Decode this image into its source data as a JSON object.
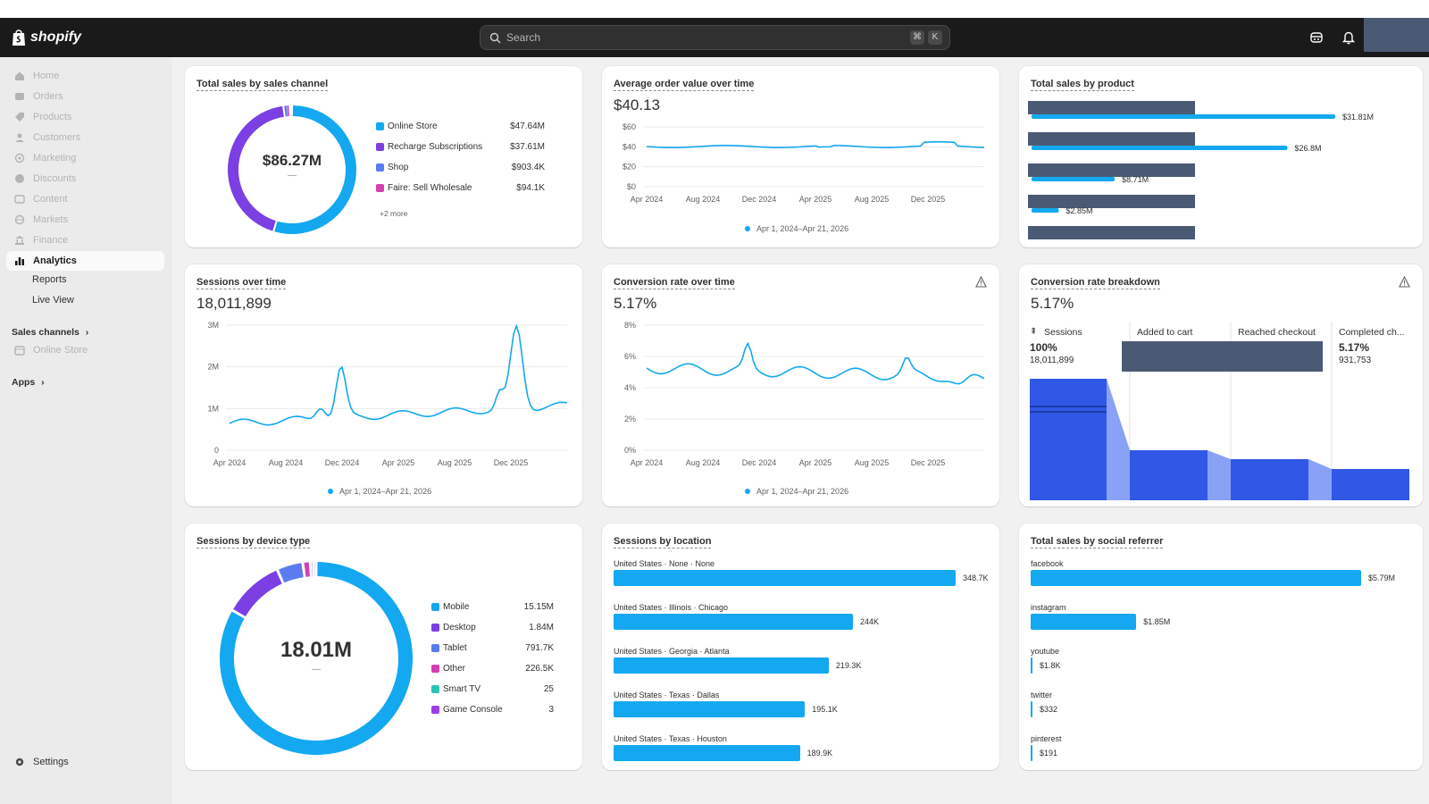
{
  "app": {
    "logo_text": "shopify",
    "search_placeholder": "Search",
    "search_shortcut": [
      "⌘",
      "K"
    ]
  },
  "sidebar": {
    "items": [
      {
        "label": "Home",
        "icon": "home-icon"
      },
      {
        "label": "Orders",
        "icon": "inbox-icon"
      },
      {
        "label": "Products",
        "icon": "tag-icon"
      },
      {
        "label": "Customers",
        "icon": "person-icon"
      },
      {
        "label": "Marketing",
        "icon": "target-icon"
      },
      {
        "label": "Discounts",
        "icon": "discount-icon"
      },
      {
        "label": "Content",
        "icon": "content-icon"
      },
      {
        "label": "Markets",
        "icon": "globe-icon"
      },
      {
        "label": "Finance",
        "icon": "bank-icon"
      },
      {
        "label": "Analytics",
        "icon": "chart-icon"
      }
    ],
    "analytics_sub": [
      "Reports",
      "Live View"
    ],
    "sales_channels_label": "Sales channels",
    "online_store_label": "Online Store",
    "apps_label": "Apps",
    "settings_label": "Settings"
  },
  "cards": {
    "sales_channel": {
      "title": "Total sales by sales channel",
      "center_value": "$86.27M",
      "center_sub": "—",
      "legend": [
        {
          "label": "Online Store",
          "value": "$47.64M",
          "color": "#13a8f0"
        },
        {
          "label": "Recharge Subscriptions",
          "value": "$37.61M",
          "color": "#7b3fe4"
        },
        {
          "label": "Shop",
          "value": "$903.4K",
          "color": "#5b7cf0"
        },
        {
          "label": "Faire: Sell Wholesale",
          "value": "$94.1K",
          "color": "#d43fb2"
        }
      ],
      "more": "+2 more"
    },
    "aov": {
      "title": "Average order value over time",
      "value": "$40.13",
      "y_ticks": [
        "$60",
        "$40",
        "$20",
        "$0"
      ],
      "x_ticks": [
        "Apr 2024",
        "Aug 2024",
        "Dec 2024",
        "Apr 2025",
        "Aug 2025",
        "Dec 2025"
      ],
      "legend": "Apr 1, 2024–Apr 21, 2026"
    },
    "sales_product": {
      "title": "Total sales by product",
      "values": [
        "$31.81M",
        "$26.8M",
        "$8.71M",
        "$2.85M"
      ],
      "amounts": [
        31.81,
        26.8,
        8.71,
        2.85
      ]
    },
    "sessions": {
      "title": "Sessions over time",
      "value": "18,011,899",
      "y_ticks": [
        "3M",
        "2M",
        "1M",
        "0"
      ],
      "x_ticks": [
        "Apr 2024",
        "Aug 2024",
        "Dec 2024",
        "Apr 2025",
        "Aug 2025",
        "Dec 2025"
      ],
      "legend": "Apr 1, 2024–Apr 21, 2026"
    },
    "conversion_time": {
      "title": "Conversion rate over time",
      "value": "5.17%",
      "y_ticks": [
        "8%",
        "6%",
        "4%",
        "2%",
        "0%"
      ],
      "x_ticks": [
        "Apr 2024",
        "Aug 2024",
        "Dec 2024",
        "Apr 2025",
        "Aug 2025",
        "Dec 2025"
      ],
      "legend": "Apr 1, 2024–Apr 21, 2026"
    },
    "conversion_breakdown": {
      "title": "Conversion rate breakdown",
      "value": "5.17%",
      "stages": [
        {
          "label": "Sessions",
          "pct": "100%",
          "count": "18,011,899"
        },
        {
          "label": "Added to cart",
          "pct": "",
          "count": ""
        },
        {
          "label": "Reached checkout",
          "pct": "",
          "count": ""
        },
        {
          "label": "Completed ch...",
          "pct": "5.17%",
          "count": "931,753"
        }
      ]
    },
    "device": {
      "title": "Sessions by device type",
      "center_value": "18.01M",
      "center_sub": "—",
      "legend": [
        {
          "label": "Mobile",
          "value": "15.15M",
          "color": "#13a8f0"
        },
        {
          "label": "Desktop",
          "value": "1.84M",
          "color": "#7b3fe4"
        },
        {
          "label": "Tablet",
          "value": "791.7K",
          "color": "#5b7cf0"
        },
        {
          "label": "Other",
          "value": "226.5K",
          "color": "#d43fb2"
        },
        {
          "label": "Smart TV",
          "value": "25",
          "color": "#2bc4b4"
        },
        {
          "label": "Game Console",
          "value": "3",
          "color": "#9b3fe4"
        }
      ]
    },
    "location": {
      "title": "Sessions by location",
      "rows": [
        {
          "label": "United States · None · None",
          "value": "348.7K",
          "amount": 348.7
        },
        {
          "label": "United States · Illinois · Chicago",
          "value": "244K",
          "amount": 244
        },
        {
          "label": "United States · Georgia · Atlanta",
          "value": "219.3K",
          "amount": 219.3
        },
        {
          "label": "United States · Texas · Dallas",
          "value": "195.1K",
          "amount": 195.1
        },
        {
          "label": "United States · Texas · Houston",
          "value": "189.9K",
          "amount": 189.9
        }
      ]
    },
    "social": {
      "title": "Total sales by social referrer",
      "rows": [
        {
          "label": "facebook",
          "value": "$5.79M",
          "amount": 5.79
        },
        {
          "label": "instagram",
          "value": "$1.85M",
          "amount": 1.85
        },
        {
          "label": "youtube",
          "value": "$1.8K",
          "amount": 0.0018
        },
        {
          "label": "twitter",
          "value": "$332",
          "amount": 0.000332
        },
        {
          "label": "pinterest",
          "value": "$191",
          "amount": 0.000191
        }
      ]
    }
  }
}
